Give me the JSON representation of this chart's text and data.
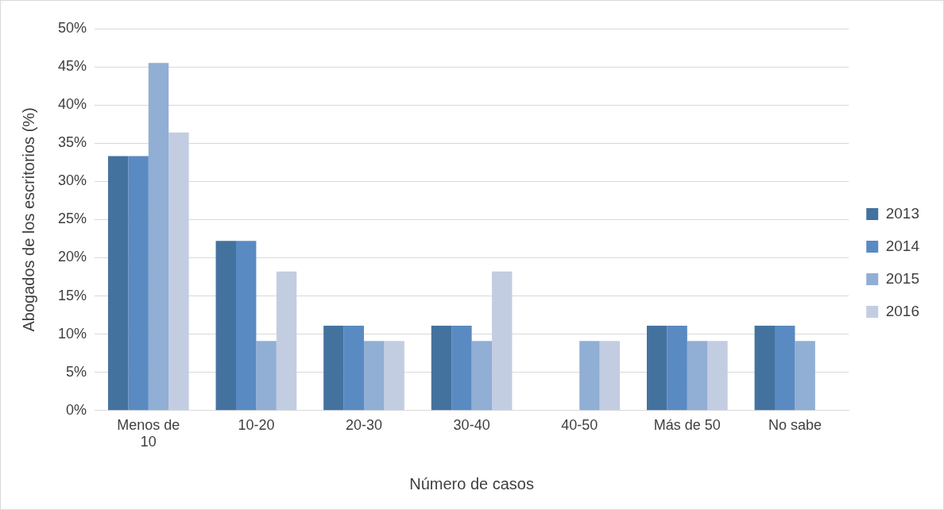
{
  "chart_data": {
    "type": "bar",
    "xlabel": "Número de casos",
    "ylabel": "Abogados de los escritorios (%)",
    "categories": [
      "Menos de 10",
      "10-20",
      "20-30",
      "30-40",
      "40-50",
      "Más de 50",
      "No sabe"
    ],
    "series": [
      {
        "name": "2013",
        "color": "#44729f",
        "values": [
          33.3,
          22.2,
          11.1,
          11.1,
          0,
          11.1,
          11.1
        ]
      },
      {
        "name": "2014",
        "color": "#5a8ac2",
        "values": [
          33.3,
          22.2,
          11.1,
          11.1,
          0,
          11.1,
          11.1
        ]
      },
      {
        "name": "2015",
        "color": "#91aed4",
        "values": [
          45.5,
          9.1,
          9.1,
          9.1,
          9.1,
          9.1,
          9.1
        ]
      },
      {
        "name": "2016",
        "color": "#c3cde2",
        "values": [
          36.4,
          18.2,
          9.1,
          18.2,
          9.1,
          9.1,
          0
        ]
      }
    ],
    "ylim": [
      0,
      50
    ],
    "yticks": [
      {
        "value": 0,
        "label": "0%"
      },
      {
        "value": 5,
        "label": "5%"
      },
      {
        "value": 10,
        "label": "10%"
      },
      {
        "value": 15,
        "label": "15%"
      },
      {
        "value": 20,
        "label": "20%"
      },
      {
        "value": 25,
        "label": "25%"
      },
      {
        "value": 30,
        "label": "30%"
      },
      {
        "value": 35,
        "label": "35%"
      },
      {
        "value": 40,
        "label": "40%"
      },
      {
        "value": 45,
        "label": "45%"
      },
      {
        "value": 50,
        "label": "50%"
      }
    ],
    "grid": "y",
    "legend": "right"
  }
}
